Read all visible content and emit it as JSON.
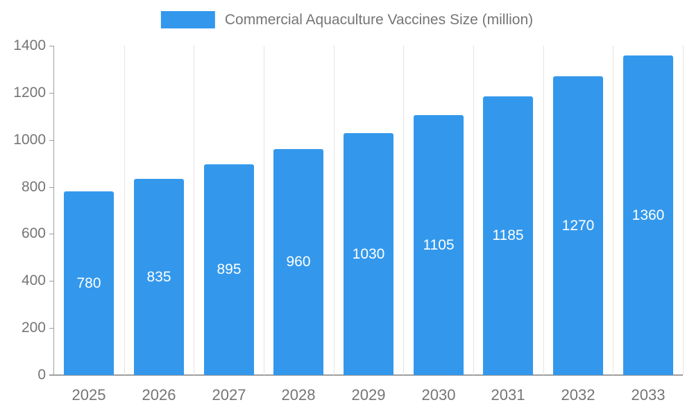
{
  "chart_data": {
    "type": "bar",
    "title": "Commercial Aquaculture Vaccines Size (million)",
    "categories": [
      "2025",
      "2026",
      "2027",
      "2028",
      "2029",
      "2030",
      "2031",
      "2032",
      "2033"
    ],
    "values": [
      780,
      835,
      895,
      960,
      1030,
      1105,
      1185,
      1270,
      1360
    ],
    "xlabel": "",
    "ylabel": "",
    "ylim": [
      0,
      1400
    ],
    "ytick_step": 200,
    "yticks": [
      "0",
      "200",
      "400",
      "600",
      "800",
      "1000",
      "1200",
      "1400"
    ],
    "grid": "vertical",
    "legend_position": "top-center",
    "value_labels": "inside-center-white"
  },
  "legend": {
    "label": "Commercial Aquaculture Vaccines Size (million)"
  },
  "colors": {
    "bar": "#3398ec",
    "axis": "#9e9e9e",
    "gridline": "#e3e3e3",
    "tick_text": "#757575",
    "value_text": "#ffffff",
    "background": "#ffffff"
  }
}
